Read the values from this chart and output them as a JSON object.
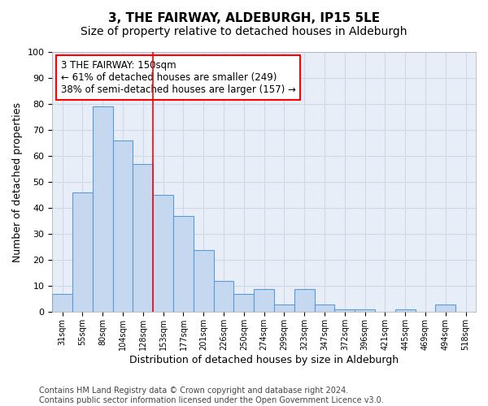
{
  "title": "3, THE FAIRWAY, ALDEBURGH, IP15 5LE",
  "subtitle": "Size of property relative to detached houses in Aldeburgh",
  "xlabel": "Distribution of detached houses by size in Aldeburgh",
  "ylabel": "Number of detached properties",
  "categories": [
    "31sqm",
    "55sqm",
    "80sqm",
    "104sqm",
    "128sqm",
    "153sqm",
    "177sqm",
    "201sqm",
    "226sqm",
    "250sqm",
    "274sqm",
    "299sqm",
    "323sqm",
    "347sqm",
    "372sqm",
    "396sqm",
    "421sqm",
    "445sqm",
    "469sqm",
    "494sqm",
    "518sqm"
  ],
  "values": [
    7,
    46,
    79,
    66,
    57,
    45,
    37,
    24,
    12,
    7,
    9,
    3,
    9,
    3,
    1,
    1,
    0,
    1,
    0,
    3,
    0
  ],
  "bar_color": "#c5d8f0",
  "bar_edge_color": "#5b9bd5",
  "redline_index": 5,
  "annotation_text": "3 THE FAIRWAY: 150sqm\n← 61% of detached houses are smaller (249)\n38% of semi-detached houses are larger (157) →",
  "annotation_box_color": "white",
  "annotation_box_edge_color": "red",
  "ylim": [
    0,
    100
  ],
  "yticks": [
    0,
    10,
    20,
    30,
    40,
    50,
    60,
    70,
    80,
    90,
    100
  ],
  "grid_color": "#d0d8e8",
  "background_color": "#e8eef8",
  "footer": "Contains HM Land Registry data © Crown copyright and database right 2024.\nContains public sector information licensed under the Open Government Licence v3.0.",
  "title_fontsize": 11,
  "subtitle_fontsize": 10,
  "xlabel_fontsize": 9,
  "ylabel_fontsize": 9,
  "annotation_fontsize": 8.5,
  "footer_fontsize": 7
}
